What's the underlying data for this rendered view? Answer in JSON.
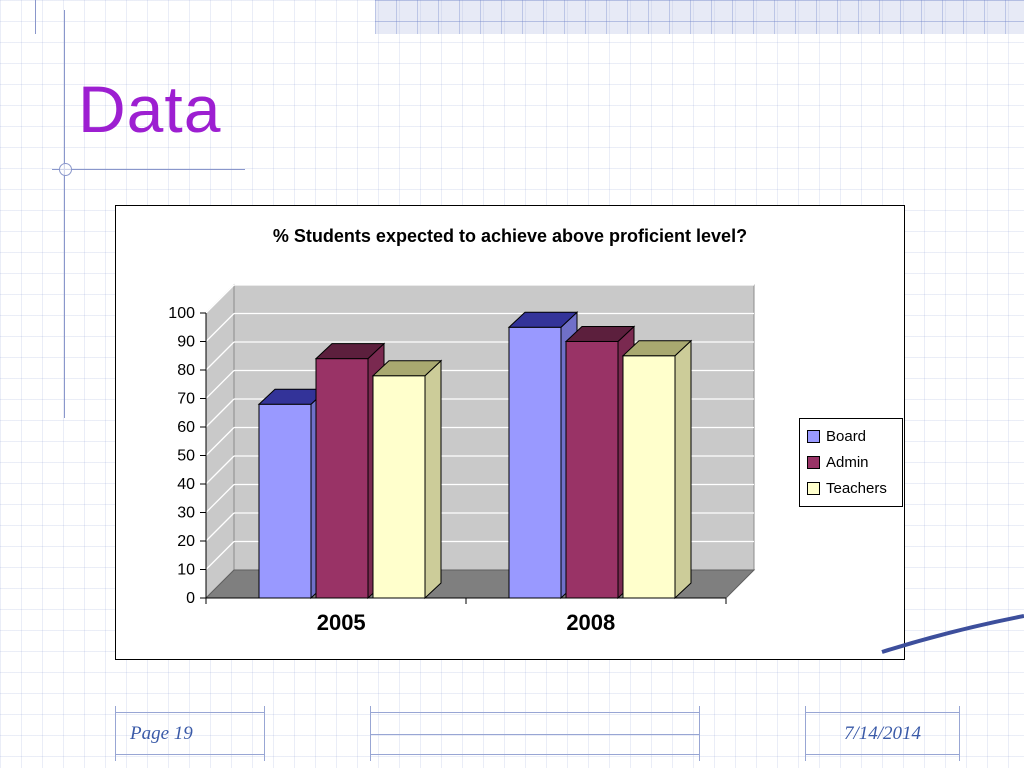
{
  "slide": {
    "title": "Data",
    "footer": {
      "page_label": "Page 19",
      "date": "7/14/2014"
    },
    "accent_colors": {
      "title": "#9D1FD1",
      "footer_text": "#3A5AA8",
      "deco_line": "#98A6D4",
      "corner_line": "#3D4F9C"
    }
  },
  "chart_data": {
    "type": "bar",
    "style": "3d-column",
    "title": "% Students expected to achieve above proficient level?",
    "categories": [
      "2005",
      "2008"
    ],
    "series": [
      {
        "name": "Board",
        "values": [
          68,
          95
        ],
        "color": "#9999FF",
        "top_color": "#333399",
        "side_color": "#7070C8"
      },
      {
        "name": "Admin",
        "values": [
          84,
          90
        ],
        "color": "#993366",
        "top_color": "#5C1F3D",
        "side_color": "#7A2950"
      },
      {
        "name": "Teachers",
        "values": [
          78,
          85
        ],
        "color": "#FFFFCC",
        "top_color": "#A8A870",
        "side_color": "#CCCC99"
      }
    ],
    "ylim": [
      0,
      100
    ],
    "yticks": [
      0,
      10,
      20,
      30,
      40,
      50,
      60,
      70,
      80,
      90,
      100
    ],
    "grid": true,
    "plot_wall_color": "#C9C9C9",
    "plot_floor_color": "#7F7F7F",
    "legend_position": "right",
    "legend_labels": [
      "Board",
      "Admin",
      "Teachers"
    ]
  }
}
